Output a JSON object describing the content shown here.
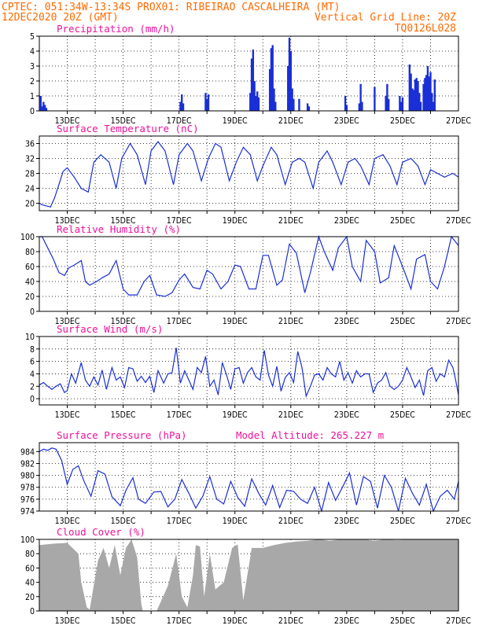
{
  "header": {
    "line1": "CPTEC:  051:34W-13:34S   PROX01: RIBEIRAO CASCALHEIRA (MT)",
    "line2_left": "12DEC2020 20Z (GMT)",
    "line2_right": "Vertical Grid Line: 20Z",
    "line3_right": "TQ0126L028"
  },
  "colors": {
    "header": "#ff6a00",
    "title": "#ee1199",
    "series": "#1a2fd6",
    "cloud": "#a8a8a8"
  },
  "chart_data": [
    {
      "type": "bar",
      "title": "Precipitation (mm/h)",
      "ylim": [
        0,
        5
      ],
      "yticks": [
        "0",
        "1",
        "2",
        "3",
        "4",
        "5"
      ],
      "xticks": [
        "13DEC",
        "15DEC",
        "17DEC",
        "19DEC",
        "21DEC",
        "23DEC",
        "25DEC",
        "27DEC"
      ],
      "x": [
        0.05,
        0.1,
        0.15,
        0.2,
        0.25,
        5.05,
        5.1,
        5.15,
        5.95,
        6.0,
        6.05,
        7.55,
        7.6,
        7.65,
        7.7,
        7.75,
        7.8,
        7.85,
        8.25,
        8.3,
        8.35,
        8.4,
        8.45,
        8.9,
        8.95,
        9.0,
        9.05,
        9.1,
        9.3,
        9.6,
        9.65,
        10.95,
        11.0,
        11.45,
        11.5,
        11.55,
        12.0,
        12.4,
        12.45,
        12.5,
        12.9,
        12.95,
        13.0,
        13.25,
        13.3,
        13.35,
        13.4,
        13.45,
        13.5,
        13.55,
        13.6,
        13.65,
        13.75,
        13.8,
        13.85,
        13.9,
        13.95,
        14.0,
        14.05,
        14.1,
        14.15
      ],
      "values": [
        1.0,
        0.3,
        0.6,
        0.4,
        0.2,
        0.6,
        1.1,
        0.5,
        1.2,
        0.8,
        1.1,
        1.2,
        3.5,
        4.1,
        2.0,
        1.0,
        1.3,
        0.9,
        2.8,
        4.2,
        4.4,
        1.5,
        0.6,
        3.0,
        4.9,
        4.0,
        1.5,
        0.8,
        0.8,
        0.5,
        0.3,
        1.0,
        0.4,
        0.5,
        1.8,
        0.6,
        1.6,
        1.0,
        1.8,
        0.8,
        1.0,
        0.6,
        0.9,
        3.1,
        2.5,
        1.5,
        1.4,
        2.1,
        2.2,
        2.0,
        1.2,
        0.6,
        1.8,
        2.2,
        2.4,
        3.0,
        2.3,
        2.6,
        1.2,
        0.6,
        2.1
      ]
    },
    {
      "type": "line",
      "title": "Surface Temperature (nC)",
      "ylim": [
        18,
        38
      ],
      "yticks": [
        "20",
        "24",
        "28",
        "32",
        "36"
      ],
      "xticks": [
        "13DEC",
        "15DEC",
        "17DEC",
        "19DEC",
        "21DEC",
        "23DEC",
        "25DEC",
        "27DEC"
      ],
      "x": [
        0,
        0.1,
        0.2,
        0.3,
        0.4,
        0.55,
        0.7,
        0.85,
        1.0,
        1.25,
        1.5,
        1.75,
        1.95,
        2.2,
        2.5,
        2.75,
        2.95,
        3.25,
        3.5,
        3.8,
        4.0,
        4.25,
        4.5,
        4.8,
        5.0,
        5.3,
        5.5,
        5.8,
        6.05,
        6.3,
        6.5,
        6.8,
        7.05,
        7.3,
        7.55,
        7.8,
        8.0,
        8.3,
        8.5,
        8.8,
        9.05,
        9.3,
        9.5,
        9.8,
        10.0,
        10.3,
        10.5,
        10.8,
        11.05,
        11.3,
        11.5,
        11.8,
        12.0,
        12.3,
        12.55,
        12.8,
        13.0,
        13.3,
        13.55,
        13.8,
        14.0,
        14.25,
        14.5,
        14.8,
        15.0
      ],
      "values": [
        20,
        19.6,
        19.4,
        19.2,
        19.0,
        21.5,
        25,
        28.5,
        29.5,
        27,
        24,
        23,
        31,
        33,
        31,
        24,
        32,
        36,
        33,
        25,
        34,
        36.5,
        34,
        25,
        33,
        36,
        34,
        26,
        32,
        36,
        35,
        26,
        31,
        35,
        33,
        26,
        30,
        35,
        33,
        25,
        31,
        32,
        31,
        24,
        31,
        34,
        31,
        25,
        31,
        32,
        30,
        25,
        32,
        33,
        30,
        25,
        31,
        32,
        30,
        25,
        29,
        28,
        27,
        28,
        27
      ]
    },
    {
      "type": "line",
      "title": "Relative Humidity (%)",
      "ylim": [
        0,
        100
      ],
      "yticks": [
        "0",
        "20",
        "40",
        "60",
        "80",
        "100"
      ],
      "xticks": [
        "13DEC",
        "15DEC",
        "17DEC",
        "19DEC",
        "21DEC",
        "23DEC",
        "25DEC",
        "27DEC"
      ],
      "x": [
        0,
        0.1,
        0.3,
        0.5,
        0.7,
        0.9,
        1.05,
        1.25,
        1.5,
        1.65,
        1.8,
        2.05,
        2.25,
        2.5,
        2.75,
        3.0,
        3.2,
        3.5,
        3.75,
        3.95,
        4.2,
        4.5,
        4.75,
        5.0,
        5.2,
        5.5,
        5.75,
        6.0,
        6.2,
        6.5,
        6.75,
        7.0,
        7.2,
        7.5,
        7.75,
        8.0,
        8.2,
        8.5,
        8.7,
        8.95,
        9.2,
        9.5,
        9.7,
        10.0,
        10.2,
        10.5,
        10.7,
        11.0,
        11.2,
        11.5,
        11.7,
        12.0,
        12.2,
        12.5,
        12.7,
        13.0,
        13.3,
        13.5,
        13.8,
        14.0,
        14.25,
        14.5,
        14.75,
        15.0
      ],
      "values": [
        100,
        100,
        85,
        70,
        52,
        48,
        58,
        62,
        68,
        40,
        35,
        40,
        45,
        50,
        68,
        30,
        22,
        22,
        40,
        48,
        22,
        20,
        25,
        42,
        50,
        32,
        30,
        55,
        50,
        30,
        40,
        62,
        60,
        30,
        30,
        75,
        75,
        35,
        42,
        90,
        78,
        25,
        52,
        100,
        80,
        55,
        85,
        100,
        60,
        40,
        95,
        80,
        38,
        45,
        88,
        60,
        30,
        70,
        76,
        40,
        30,
        60,
        100,
        88
      ]
    },
    {
      "type": "line",
      "title": "Surface Wind (m/s)",
      "ylim": [
        -1,
        10
      ],
      "yticks": [
        "0",
        "2",
        "4",
        "6",
        "8",
        "10"
      ],
      "xticks": [
        "13DEC",
        "15DEC",
        "17DEC",
        "19DEC",
        "21DEC",
        "23DEC",
        "25DEC",
        "27DEC"
      ],
      "x": [
        0,
        0.15,
        0.3,
        0.45,
        0.6,
        0.75,
        0.9,
        1.0,
        1.15,
        1.3,
        1.5,
        1.65,
        1.8,
        1.95,
        2.1,
        2.25,
        2.4,
        2.6,
        2.75,
        2.9,
        3.05,
        3.2,
        3.35,
        3.5,
        3.65,
        3.8,
        3.95,
        4.1,
        4.25,
        4.45,
        4.6,
        4.75,
        4.9,
        5.05,
        5.2,
        5.35,
        5.5,
        5.65,
        5.8,
        5.95,
        6.1,
        6.25,
        6.4,
        6.55,
        6.7,
        6.85,
        7.0,
        7.15,
        7.3,
        7.45,
        7.6,
        7.75,
        7.9,
        8.05,
        8.2,
        8.35,
        8.5,
        8.65,
        8.8,
        8.95,
        9.1,
        9.25,
        9.4,
        9.55,
        9.7,
        9.85,
        10.0,
        10.15,
        10.3,
        10.45,
        10.6,
        10.75,
        10.9,
        11.05,
        11.2,
        11.35,
        11.5,
        11.65,
        11.8,
        11.95,
        12.1,
        12.25,
        12.4,
        12.55,
        12.7,
        12.85,
        13.0,
        13.15,
        13.3,
        13.45,
        13.6,
        13.75,
        13.9,
        14.05,
        14.2,
        14.35,
        14.5,
        14.65,
        14.8,
        14.9,
        15.0
      ],
      "values": [
        2.2,
        2.6,
        2.0,
        1.5,
        2.0,
        2.4,
        1.0,
        1.3,
        4.0,
        2.5,
        5.8,
        3.0,
        2.0,
        3.5,
        2.2,
        4.6,
        1.5,
        5.0,
        3.0,
        3.5,
        1.8,
        5.0,
        4.8,
        2.8,
        3.6,
        2.6,
        3.6,
        1.0,
        4.5,
        2.5,
        4.0,
        4.2,
        8.2,
        2.5,
        4.5,
        3.0,
        1.5,
        5.0,
        4.2,
        6.8,
        2.0,
        3.0,
        0.6,
        5.8,
        3.8,
        1.5,
        4.8,
        5.0,
        2.5,
        4.2,
        5.0,
        3.5,
        3.0,
        7.8,
        3.8,
        2.0,
        5.2,
        1.2,
        3.4,
        4.2,
        2.6,
        7.6,
        5.0,
        0.4,
        2.0,
        3.8,
        4.0,
        3.0,
        5.0,
        4.0,
        3.5,
        6.0,
        3.0,
        4.2,
        2.5,
        4.5,
        3.5,
        4.0,
        4.0,
        1.0,
        2.5,
        3.0,
        4.2,
        2.0,
        1.5,
        2.0,
        3.0,
        5.0,
        3.5,
        1.8,
        3.0,
        0.5,
        4.5,
        5.0,
        2.8,
        4.0,
        3.5,
        6.2,
        5.0,
        3.0,
        0.6
      ]
    },
    {
      "type": "line",
      "title": "Surface Pressure (hPa)",
      "annotation": "Model Altitude: 265.227 m",
      "ylim": [
        974,
        985.5
      ],
      "yticks": [
        "974",
        "976",
        "978",
        "980",
        "982",
        "984"
      ],
      "xticks": [
        "13DEC",
        "15DEC",
        "17DEC",
        "19DEC",
        "21DEC",
        "23DEC",
        "25DEC",
        "27DEC"
      ],
      "x": [
        0,
        0.15,
        0.3,
        0.45,
        0.6,
        0.8,
        1.0,
        1.2,
        1.4,
        1.6,
        1.85,
        2.1,
        2.35,
        2.6,
        2.9,
        3.1,
        3.35,
        3.55,
        3.8,
        4.1,
        4.35,
        4.6,
        4.85,
        5.1,
        5.35,
        5.6,
        5.85,
        6.1,
        6.35,
        6.6,
        6.85,
        7.1,
        7.35,
        7.6,
        7.85,
        8.1,
        8.35,
        8.6,
        8.85,
        9.1,
        9.35,
        9.6,
        9.85,
        10.1,
        10.35,
        10.6,
        10.85,
        11.1,
        11.35,
        11.6,
        11.85,
        12.1,
        12.35,
        12.6,
        12.85,
        13.1,
        13.35,
        13.6,
        13.85,
        14.1,
        14.35,
        14.6,
        14.85,
        15.0
      ],
      "values": [
        984.0,
        984.4,
        984.2,
        984.6,
        984.4,
        982.5,
        978.5,
        981.0,
        981.6,
        979.0,
        976.5,
        980.8,
        980.2,
        976.4,
        974.9,
        977.5,
        979.6,
        976.0,
        975.3,
        977.2,
        977.3,
        974.7,
        976.0,
        979.3,
        977.0,
        974.5,
        976.5,
        979.8,
        976.0,
        975.2,
        979.0,
        976.3,
        974.8,
        979.4,
        977.0,
        975.0,
        978.3,
        974.6,
        977.5,
        977.3,
        976.0,
        975.3,
        978.0,
        974.0,
        978.8,
        975.8,
        978.0,
        980.4,
        975.0,
        979.8,
        979.0,
        974.5,
        980.0,
        978.0,
        974.0,
        979.5,
        977.0,
        975.0,
        978.5,
        974.0,
        976.5,
        977.5,
        976.0,
        979.0
      ]
    },
    {
      "type": "area",
      "title": "Cloud Cover (%)",
      "ylim": [
        0,
        100
      ],
      "yticks": [
        "0",
        "20",
        "40",
        "60",
        "80",
        "100"
      ],
      "xticks": [
        "13DEC",
        "15DEC",
        "17DEC",
        "19DEC",
        "21DEC",
        "23DEC",
        "25DEC",
        "27DEC"
      ],
      "x": [
        0,
        0.5,
        1.0,
        1.4,
        1.5,
        1.7,
        1.8,
        2.1,
        2.3,
        2.5,
        2.7,
        2.9,
        3.1,
        3.3,
        3.5,
        3.65,
        3.7,
        3.8,
        4.2,
        4.6,
        4.9,
        5.1,
        5.3,
        5.5,
        5.6,
        5.75,
        5.9,
        6.1,
        6.3,
        6.6,
        6.9,
        7.1,
        7.3,
        7.6,
        8.0,
        8.4,
        8.8,
        9.2,
        9.6,
        10.0,
        10.4,
        10.8,
        11.2,
        11.6,
        12.0,
        12.4,
        12.8,
        13.2,
        13.6,
        14.0,
        14.4,
        14.8,
        15.0
      ],
      "values": [
        92,
        94,
        95,
        80,
        40,
        5,
        2,
        70,
        88,
        60,
        92,
        50,
        88,
        100,
        75,
        10,
        0,
        0,
        0,
        35,
        80,
        20,
        5,
        50,
        92,
        90,
        20,
        80,
        30,
        40,
        88,
        93,
        15,
        88,
        88,
        92,
        95,
        97,
        98,
        100,
        98,
        100,
        100,
        100,
        98,
        100,
        99,
        100,
        100,
        100,
        100,
        100,
        99
      ]
    }
  ]
}
